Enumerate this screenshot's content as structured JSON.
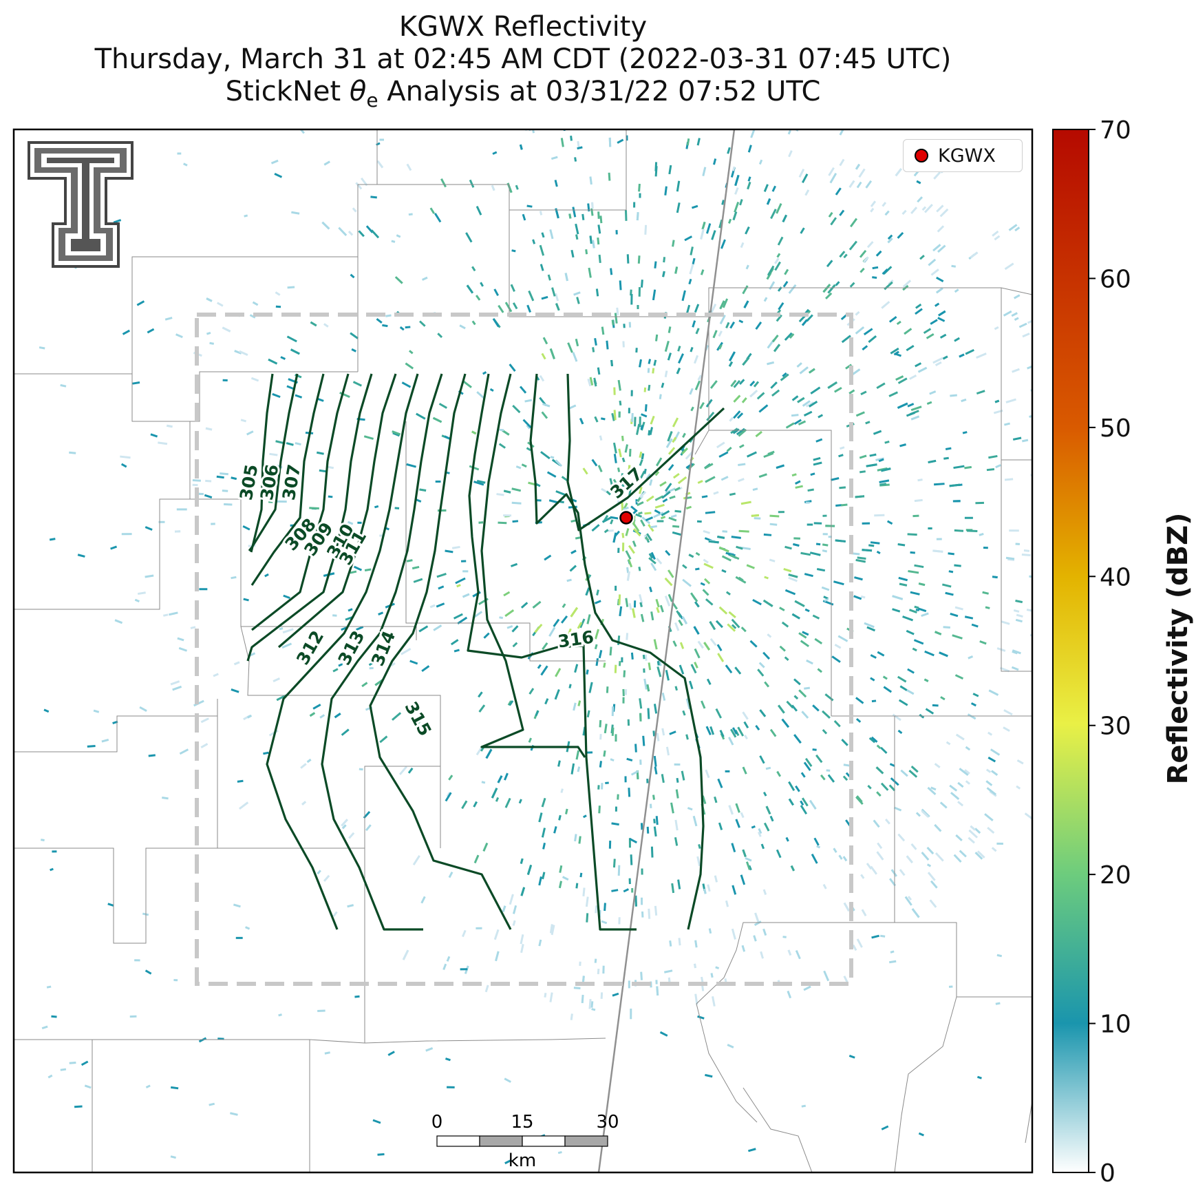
{
  "title": {
    "line1": "KGWX Reflectivity",
    "line2": "Thursday, March 31 at 02:45 AM CDT (2022-03-31 07:45 UTC)",
    "line3_prefix": "StickNet ",
    "line3_theta": "θ",
    "line3_sub": "e",
    "line3_suffix": " Analysis at 03/31/22 07:52 UTC"
  },
  "legend": {
    "label": "KGWX",
    "marker_color": "#e00000"
  },
  "colorbar": {
    "label": "Reflectivity (dBZ)",
    "ticks": [
      "0",
      "10",
      "20",
      "30",
      "40",
      "50",
      "60",
      "70"
    ],
    "colors": [
      "#ffffff",
      "#1a95ad",
      "#6dcc7d",
      "#e9f046",
      "#e3b300",
      "#d95a00",
      "#b50a00"
    ]
  },
  "scale_bar": {
    "ticks": [
      "0",
      "15",
      "30"
    ],
    "unit": "km"
  },
  "contour_labels": [
    "305",
    "306",
    "307",
    "308",
    "309",
    "310",
    "311",
    "312",
    "313",
    "314",
    "315",
    "316",
    "317"
  ],
  "colors": {
    "contour": "#0b4a26",
    "analysis_box": "#c8c8c8",
    "radar_site": "#e00000"
  }
}
